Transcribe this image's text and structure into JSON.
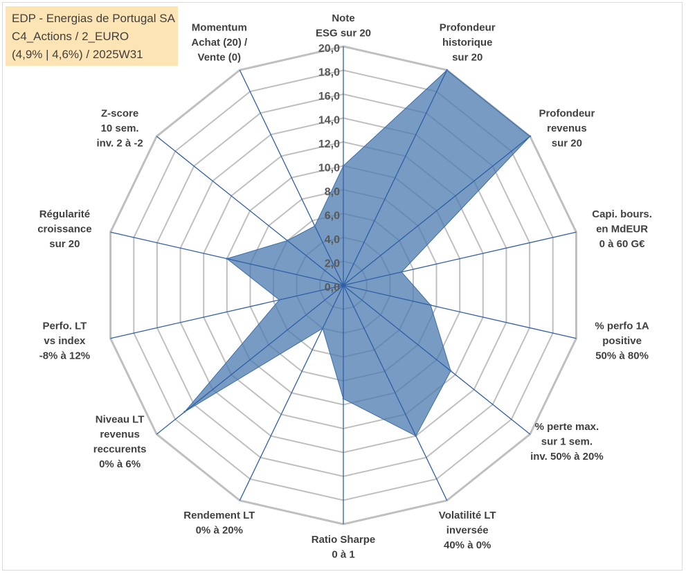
{
  "title_box": {
    "line1": "EDP - Energias de Portugal SA",
    "line2": "C4_Actions / 2_EURO",
    "line3": "(4,9% | 4,6%) / 2025W31",
    "background": "#fce4b4"
  },
  "chart_data": {
    "type": "radar",
    "rmin": 0,
    "rmax": 20,
    "ticks": [
      "0,0",
      "2,0",
      "4,0",
      "6,0",
      "8,0",
      "10,0",
      "12,0",
      "14,0",
      "16,0",
      "18,0",
      "20,0"
    ],
    "grid": true,
    "grid_shape": "polygon",
    "fill_color": "#4a79ad",
    "spoke_color": "#2e5fa6",
    "grid_color": "#bfbfbf",
    "axes": [
      {
        "label": [
          "Note",
          "ESG sur 20"
        ],
        "value": 10.0
      },
      {
        "label": [
          "Profondeur",
          "historique",
          "sur 20"
        ],
        "value": 20.0
      },
      {
        "label": [
          "Profondeur",
          "revenus",
          "sur 20"
        ],
        "value": 20.0
      },
      {
        "label": [
          "Capi. bours.",
          "en MdEUR",
          "0 à 60 G€"
        ],
        "value": 5.0
      },
      {
        "label": [
          "% perfo 1A",
          "positive",
          "50% à 80%"
        ],
        "value": 7.5
      },
      {
        "label": [
          "% perte max.",
          "sur 1 sem.",
          "inv. 50% à 20%"
        ],
        "value": 11.5
      },
      {
        "label": [
          "Volatilité LT",
          "inversée",
          "40% à 0%"
        ],
        "value": 14.0
      },
      {
        "label": [
          "Ratio Sharpe",
          "0 à 1"
        ],
        "value": 9.5
      },
      {
        "label": [
          "Rendement LT",
          "0% à 20%"
        ],
        "value": 4.0
      },
      {
        "label": [
          "Niveau LT",
          "revenus",
          "reccurents",
          "0% à 6%"
        ],
        "value": 17.0
      },
      {
        "label": [
          "Perfo. LT",
          "vs index",
          "-8% à 12%"
        ],
        "value": 5.5
      },
      {
        "label": [
          "Régularité",
          "croissance",
          "sur 20"
        ],
        "value": 10.0
      },
      {
        "label": [
          "Z-score",
          "10 sem.",
          "inv. 2 à -2"
        ],
        "value": 6.0
      },
      {
        "label": [
          "Momentum",
          "Achat (20) /",
          "Vente (0)"
        ],
        "value": 5.5
      }
    ]
  }
}
